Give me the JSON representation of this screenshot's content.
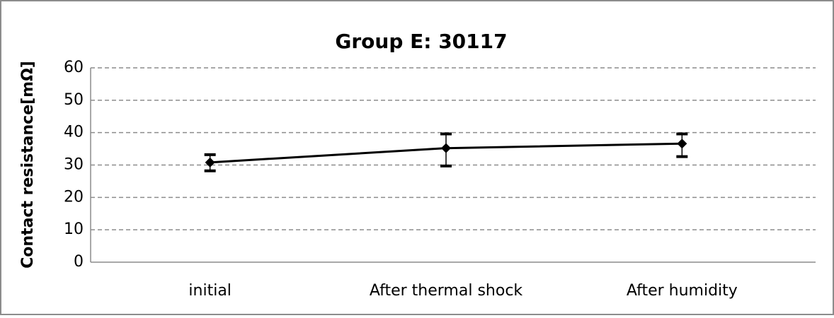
{
  "chart_data": {
    "type": "line",
    "title": "Group E: 30117",
    "ylabel": "Contact resistance[mΩ]",
    "categories": [
      "initial",
      "After thermal shock",
      "After humidity"
    ],
    "values": [
      30.8,
      35.2,
      36.6
    ],
    "min": [
      28.2,
      29.7,
      32.6
    ],
    "max": [
      33.2,
      39.6,
      39.6
    ],
    "color": "#000000",
    "ylim": [
      0,
      60
    ],
    "yticks": [
      0,
      10,
      20,
      30,
      40,
      50,
      60
    ],
    "grid": true
  }
}
